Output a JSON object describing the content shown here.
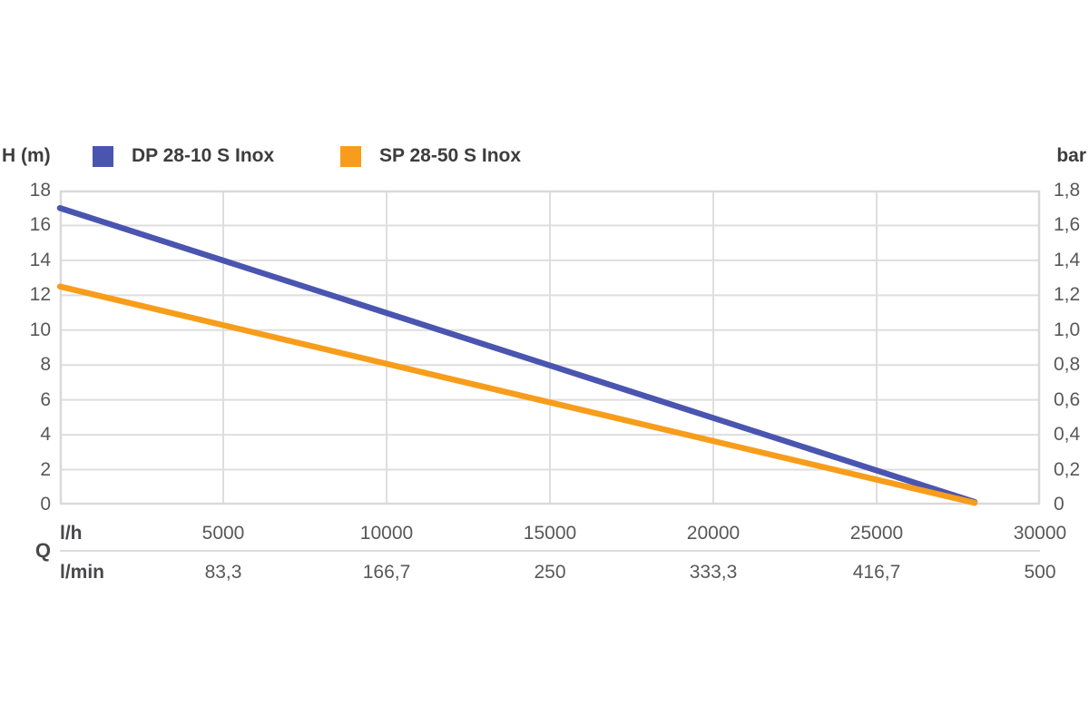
{
  "header": {
    "left_axis_unit": "H (m)",
    "right_axis_unit": "bar"
  },
  "legend": [
    {
      "label": "DP 28-10 S Inox",
      "color": "#4a55b0"
    },
    {
      "label": "SP 28-50 S Inox",
      "color": "#f79d1b"
    }
  ],
  "x_axis": {
    "primary_unit": "l/h",
    "secondary_unit": "l/min",
    "group_label": "Q"
  },
  "chart_data": {
    "type": "line",
    "title": "",
    "xlabel": "Q (l/h | l/min)",
    "ylabel_left": "H (m)",
    "ylabel_right": "bar",
    "grid": true,
    "legend_position": "top",
    "x_range": [
      0,
      30000
    ],
    "y_range_left": [
      0,
      18
    ],
    "y_range_right": [
      0,
      1.8
    ],
    "y_ticks_left": [
      "18",
      "16",
      "14",
      "12",
      "10",
      "8",
      "6",
      "4",
      "2",
      "0"
    ],
    "y_ticks_right": [
      "1,8",
      "1,6",
      "1,4",
      "1,2",
      "1,0",
      "0,8",
      "0,6",
      "0,4",
      "0,2",
      "0"
    ],
    "x_ticks": [
      {
        "value": 5000,
        "lh": "5000",
        "lmin": "83,3"
      },
      {
        "value": 10000,
        "lh": "10000",
        "lmin": "166,7"
      },
      {
        "value": 15000,
        "lh": "15000",
        "lmin": "250"
      },
      {
        "value": 20000,
        "lh": "20000",
        "lmin": "333,3"
      },
      {
        "value": 25000,
        "lh": "25000",
        "lmin": "416,7"
      },
      {
        "value": 30000,
        "lh": "30000",
        "lmin": "500"
      }
    ],
    "series": [
      {
        "name": "DP 28-10 S Inox",
        "color": "#4a55b0",
        "points": [
          [
            0,
            17.0
          ],
          [
            28000,
            0.15
          ]
        ]
      },
      {
        "name": "SP 28-50 S Inox",
        "color": "#f79d1b",
        "points": [
          [
            0,
            12.5
          ],
          [
            28000,
            0.1
          ]
        ]
      }
    ],
    "colors": {
      "grid": "#dedede",
      "plot_border": "#d9d9d9",
      "tick_text": "#58585a",
      "label_text": "#3d3d3f"
    }
  }
}
